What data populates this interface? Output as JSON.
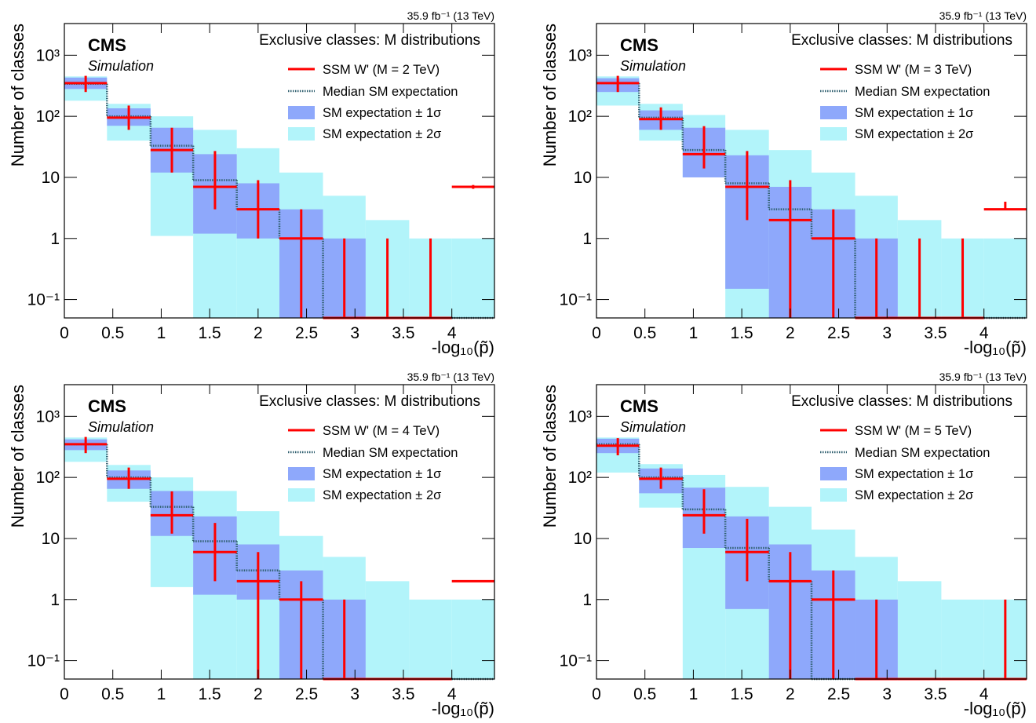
{
  "chart_data": [
    {
      "type": "histogram",
      "lumi": "35.9 fb⁻¹ (13 TeV)",
      "experiment": "CMS",
      "subtitle": "Simulation",
      "title": "Exclusive classes: M distributions",
      "xlabel": "-log₁₀(p̃)",
      "ylabel": "Number of classes",
      "log_y": true,
      "bins": [
        0,
        0.44,
        0.89,
        1.33,
        1.78,
        2.22,
        2.67,
        3.11,
        3.56,
        4,
        4.44
      ],
      "xlim": [
        0,
        4.44
      ],
      "ylim": [
        0.05,
        3300
      ],
      "xticks": [
        0,
        0.5,
        1,
        1.5,
        2,
        2.5,
        3,
        3.5,
        4
      ],
      "yticks": [
        {
          "value": 0.1,
          "label": "10⁻¹"
        },
        1,
        10,
        {
          "value": 100,
          "label": "10²"
        },
        {
          "value": 1000,
          "label": "10³"
        }
      ],
      "series": [
        {
          "name": "SSM W' (M = 2 TeV)",
          "color": "#ff0000",
          "values": [
            350,
            95,
            28,
            7,
            3,
            1,
            0,
            0,
            0,
            7
          ],
          "errors_low": [
            100,
            35,
            16,
            4,
            2,
            1,
            0,
            0,
            0,
            0.5
          ],
          "errors_high": [
            110,
            55,
            37,
            20,
            6,
            2,
            1,
            1,
            1,
            0.5
          ]
        },
        {
          "name": "Median SM expectation",
          "color": "#2f5f6f",
          "values": [
            340,
            100,
            33,
            9,
            3,
            1,
            0,
            0,
            0,
            0
          ]
        },
        {
          "name": "SM expectation ± 1σ",
          "color": "#8ea8fb",
          "low": [
            280,
            70,
            12,
            1.2,
            1,
            0,
            0,
            0,
            0,
            0
          ],
          "high": [
            430,
            135,
            65,
            24,
            8,
            3,
            1,
            0,
            0,
            0
          ]
        },
        {
          "name": "SM expectation ± 2σ",
          "color": "#b2f4fa",
          "low": [
            180,
            40,
            1.1,
            0,
            0,
            0,
            0,
            0,
            0,
            0
          ],
          "high": [
            450,
            160,
            100,
            60,
            30,
            12,
            5,
            2,
            1,
            1
          ]
        }
      ]
    },
    {
      "type": "histogram",
      "lumi": "35.9 fb⁻¹ (13 TeV)",
      "experiment": "CMS",
      "subtitle": "Simulation",
      "title": "Exclusive classes: M distributions",
      "xlabel": "-log₁₀(p̃)",
      "ylabel": "Number of classes",
      "log_y": true,
      "bins": [
        0,
        0.44,
        0.89,
        1.33,
        1.78,
        2.22,
        2.67,
        3.11,
        3.56,
        4,
        4.44
      ],
      "xlim": [
        0,
        4.44
      ],
      "ylim": [
        0.05,
        3300
      ],
      "xticks": [
        0,
        0.5,
        1,
        1.5,
        2,
        2.5,
        3,
        3.5,
        4
      ],
      "yticks": [
        {
          "value": 0.1,
          "label": "10⁻¹"
        },
        1,
        10,
        {
          "value": 100,
          "label": "10²"
        },
        {
          "value": 1000,
          "label": "10³"
        }
      ],
      "series": [
        {
          "name": "SSM W' (M = 3 TeV)",
          "color": "#ff0000",
          "values": [
            350,
            90,
            24,
            7,
            2,
            1,
            0,
            0,
            0,
            3
          ],
          "errors_low": [
            100,
            30,
            10,
            5,
            2,
            1,
            0,
            0,
            0,
            0
          ],
          "errors_high": [
            110,
            50,
            45,
            20,
            7,
            2,
            1,
            1,
            1,
            1
          ]
        },
        {
          "name": "Median SM expectation",
          "color": "#2f5f6f",
          "values": [
            350,
            95,
            28,
            8,
            3,
            1,
            0,
            0,
            0,
            0
          ]
        },
        {
          "name": "SM expectation ± 1σ",
          "color": "#8ea8fb",
          "low": [
            250,
            60,
            10,
            0.15,
            0,
            0,
            0,
            0,
            0,
            0
          ],
          "high": [
            420,
            125,
            65,
            23,
            7,
            3,
            1,
            0,
            0,
            0
          ]
        },
        {
          "name": "SM expectation ± 2σ",
          "color": "#b2f4fa",
          "low": [
            150,
            40,
            10,
            0,
            0,
            0,
            0,
            0,
            0,
            0
          ],
          "high": [
            450,
            160,
            105,
            60,
            28,
            12,
            5,
            2,
            1,
            1
          ]
        }
      ]
    },
    {
      "type": "histogram",
      "lumi": "35.9 fb⁻¹ (13 TeV)",
      "experiment": "CMS",
      "subtitle": "Simulation",
      "title": "Exclusive classes: M distributions",
      "xlabel": "-log₁₀(p̃)",
      "ylabel": "Number of classes",
      "log_y": true,
      "bins": [
        0,
        0.44,
        0.89,
        1.33,
        1.78,
        2.22,
        2.67,
        3.11,
        3.56,
        4,
        4.44
      ],
      "xlim": [
        0,
        4.44
      ],
      "ylim": [
        0.05,
        3300
      ],
      "xticks": [
        0,
        0.5,
        1,
        1.5,
        2,
        2.5,
        3,
        3.5,
        4
      ],
      "yticks": [
        {
          "value": 0.1,
          "label": "10⁻¹"
        },
        1,
        10,
        {
          "value": 100,
          "label": "10²"
        },
        {
          "value": 1000,
          "label": "10³"
        }
      ],
      "series": [
        {
          "name": "SSM W' (M = 4 TeV)",
          "color": "#ff0000",
          "values": [
            350,
            95,
            24,
            6,
            2,
            1,
            0,
            0,
            0,
            2
          ],
          "errors_low": [
            100,
            30,
            12,
            4,
            2,
            1,
            0,
            0,
            0,
            0
          ],
          "errors_high": [
            110,
            50,
            35,
            12,
            4,
            1,
            1,
            0,
            0,
            0
          ]
        },
        {
          "name": "Median SM expectation",
          "color": "#2f5f6f",
          "values": [
            350,
            100,
            33,
            9,
            3,
            1,
            0,
            0,
            0,
            0
          ]
        },
        {
          "name": "SM expectation ± 1σ",
          "color": "#8ea8fb",
          "low": [
            280,
            65,
            11,
            1.2,
            1,
            0,
            0,
            0,
            0,
            0
          ],
          "high": [
            420,
            130,
            60,
            23,
            8,
            3,
            1,
            0,
            0,
            0
          ]
        },
        {
          "name": "SM expectation ± 2σ",
          "color": "#b2f4fa",
          "low": [
            180,
            40,
            1.6,
            0,
            0,
            0,
            0,
            0,
            0,
            0
          ],
          "high": [
            450,
            160,
            100,
            60,
            28,
            11,
            5,
            2,
            1,
            1
          ]
        }
      ]
    },
    {
      "type": "histogram",
      "lumi": "35.9 fb⁻¹ (13 TeV)",
      "experiment": "CMS",
      "subtitle": "Simulation",
      "title": "Exclusive classes: M distributions",
      "xlabel": "-log₁₀(p̃)",
      "ylabel": "Number of classes",
      "log_y": true,
      "bins": [
        0,
        0.44,
        0.89,
        1.33,
        1.78,
        2.22,
        2.67,
        3.11,
        3.56,
        4,
        4.44
      ],
      "xlim": [
        0,
        4.44
      ],
      "ylim": [
        0.05,
        3300
      ],
      "xticks": [
        0,
        0.5,
        1,
        1.5,
        2,
        2.5,
        3,
        3.5,
        4
      ],
      "yticks": [
        {
          "value": 0.1,
          "label": "10⁻¹"
        },
        1,
        10,
        {
          "value": 100,
          "label": "10²"
        },
        {
          "value": 1000,
          "label": "10³"
        }
      ],
      "series": [
        {
          "name": "SSM W' (M = 5 TeV)",
          "color": "#ff0000",
          "values": [
            330,
            95,
            24,
            6,
            2,
            1,
            0,
            0,
            0,
            0
          ],
          "errors_low": [
            100,
            30,
            12,
            4,
            2,
            1,
            0,
            0,
            0,
            0
          ],
          "errors_high": [
            110,
            50,
            40,
            15,
            4,
            2,
            1,
            0,
            0,
            1
          ]
        },
        {
          "name": "Median SM expectation",
          "color": "#2f5f6f",
          "values": [
            350,
            100,
            30,
            7,
            2,
            0,
            0,
            0,
            0,
            0
          ]
        },
        {
          "name": "SM expectation ± 1σ",
          "color": "#8ea8fb",
          "low": [
            250,
            55,
            7,
            0.7,
            0,
            0,
            0,
            0,
            0,
            0
          ],
          "high": [
            430,
            140,
            68,
            23,
            8,
            3,
            1,
            0,
            0,
            0
          ]
        },
        {
          "name": "SM expectation ± 2σ",
          "color": "#b2f4fa",
          "low": [
            120,
            32,
            0,
            0,
            0,
            0,
            0,
            0,
            0,
            0
          ],
          "high": [
            450,
            165,
            110,
            70,
            33,
            14,
            5,
            2,
            1,
            1
          ]
        }
      ]
    }
  ]
}
